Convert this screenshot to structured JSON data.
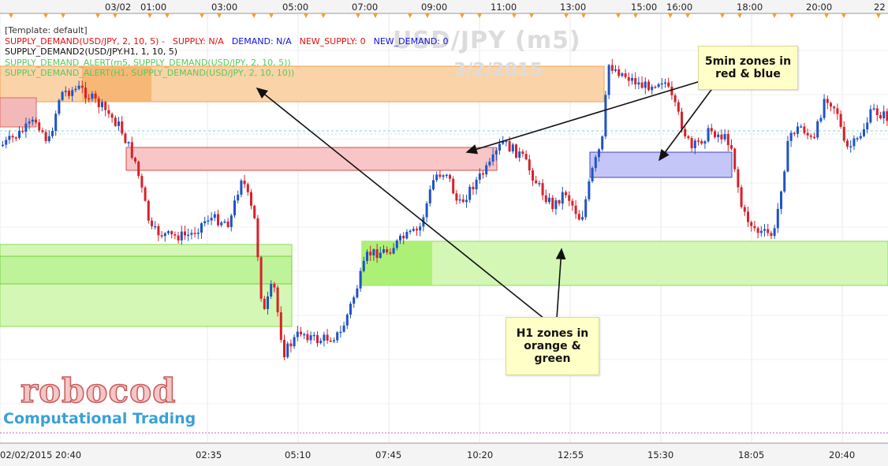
{
  "chart_data": {
    "type": "candlestick",
    "title": "USD/JPY (m5)",
    "subtitle": "3/2/2015",
    "legend": [
      {
        "text": "[Template: default]",
        "color": "#333333"
      },
      {
        "text": "SUPPLY_DEMAND(USD/JPY, 2, 10, 5) -",
        "color": "#e01010",
        "extras": [
          {
            "text": "SUPPLY: N/A",
            "color": "#e01010"
          },
          {
            "text": "DEMAND: N/A",
            "color": "#1010e0"
          },
          {
            "text": "NEW_SUPPLY: 0",
            "color": "#e01010"
          },
          {
            "text": "NEW_DEMAND: 0",
            "color": "#1010e0"
          }
        ]
      },
      {
        "text": "SUPPLY_DEMAND2(USD/JPY.H1, 1, 10, 5)",
        "color": "#111111"
      },
      {
        "text": "SUPPLY_DEMAND_ALERT(m5, SUPPLY_DEMAND(USD/JPY, 2, 10, 5))",
        "color": "#55cc55"
      },
      {
        "text": "SUPPLY_DEMAND_ALERT(H1, SUPPLY_DEMAND(USD/JPY, 2, 10, 10))",
        "color": "#55cc55"
      }
    ],
    "x_top_ticks": [
      "03/02",
      "01:00",
      "03:00",
      "05:00",
      "07:00",
      "09:00",
      "11:00",
      "13:00",
      "15:00",
      "16:00",
      "18:00",
      "20:00",
      "22"
    ],
    "x_bottom_ticks": [
      "02/02/2015 20:40",
      "02:35",
      "05:10",
      "07:45",
      "10:20",
      "12:55",
      "15:30",
      "18:05",
      "20:40"
    ],
    "zones": {
      "h1_supply_orange": {
        "label": "H1 supply zone",
        "color": "#fbd3a8"
      },
      "h1_demand_green": {
        "label": "H1 demand zone",
        "color": "#d4f7b5"
      },
      "m5_supply_red": {
        "label": "5min supply zone",
        "color": "#f8c6c6"
      },
      "m5_demand_blue": {
        "label": "5min demand zone",
        "color": "#c4c6f8"
      }
    },
    "colors": {
      "up": "#1f53c4",
      "down": "#d8212a",
      "grid": "#e8e8e8"
    },
    "grid": true
  },
  "annotations": {
    "note_5min": "5min zones in red & blue",
    "note_h1": "H1 zones in orange & green"
  },
  "branding": {
    "logo": "robocod",
    "tagline": "Computational Trading"
  }
}
